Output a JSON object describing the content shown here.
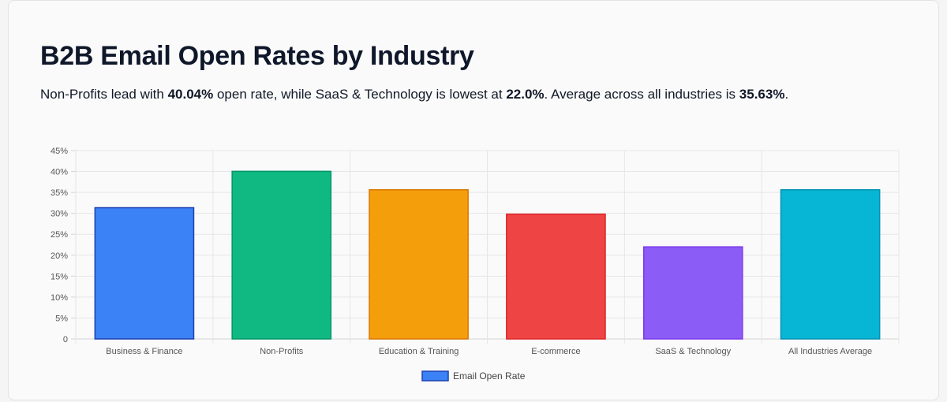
{
  "header": {
    "title": "B2B Email Open Rates by Industry",
    "subtitle_parts": [
      "Non-Profits lead with ",
      "40.04%",
      " open rate, while SaaS & Technology is lowest at ",
      "22.0%",
      ". Average across all industries is ",
      "35.63%",
      "."
    ]
  },
  "chart_data": {
    "type": "bar",
    "title": "",
    "xlabel": "",
    "ylabel": "",
    "categories": [
      "Business & Finance",
      "Non-Profits",
      "Education & Training",
      "E-commerce",
      "SaaS & Technology",
      "All Industries Average"
    ],
    "series": [
      {
        "name": "Email Open Rate",
        "values": [
          31.35,
          40.04,
          35.63,
          29.81,
          22.0,
          35.63
        ],
        "colors": [
          "#3b82f6",
          "#10b981",
          "#f59e0b",
          "#ef4444",
          "#8b5cf6",
          "#06b6d4"
        ],
        "border_colors": [
          "#1e40af",
          "#059669",
          "#d97706",
          "#dc2626",
          "#7c3aed",
          "#0891b2"
        ]
      }
    ],
    "ylim": [
      0,
      45
    ],
    "yticks": [
      "0",
      "5%",
      "10%",
      "15%",
      "20%",
      "25%",
      "30%",
      "35%",
      "40%",
      "45%"
    ],
    "grid": true,
    "legend_position": "bottom"
  }
}
